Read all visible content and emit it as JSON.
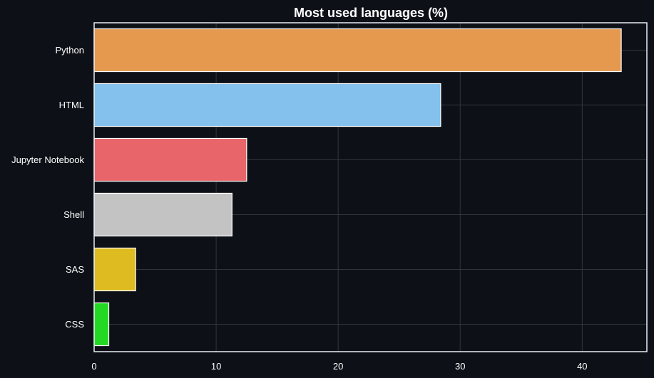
{
  "colors": {
    "background": "#0d1117",
    "grid": "#30363d",
    "axis": "#e6edf3",
    "text": "#ffffff"
  },
  "chart_data": {
    "type": "bar",
    "orientation": "horizontal",
    "title": "Most used languages (%)",
    "xlabel": "",
    "ylabel": "",
    "categories": [
      "Python",
      "HTML",
      "Jupyter Notebook",
      "Shell",
      "SAS",
      "CSS"
    ],
    "values": [
      43.2,
      28.4,
      12.5,
      11.3,
      3.4,
      1.2
    ],
    "colors": [
      "#e5994f",
      "#84c1ec",
      "#e8656a",
      "#c3c3c3",
      "#debb20",
      "#24d924"
    ],
    "xlim": [
      0,
      45.3
    ],
    "xticks": [
      0,
      10,
      20,
      30,
      40
    ],
    "grid": true
  }
}
